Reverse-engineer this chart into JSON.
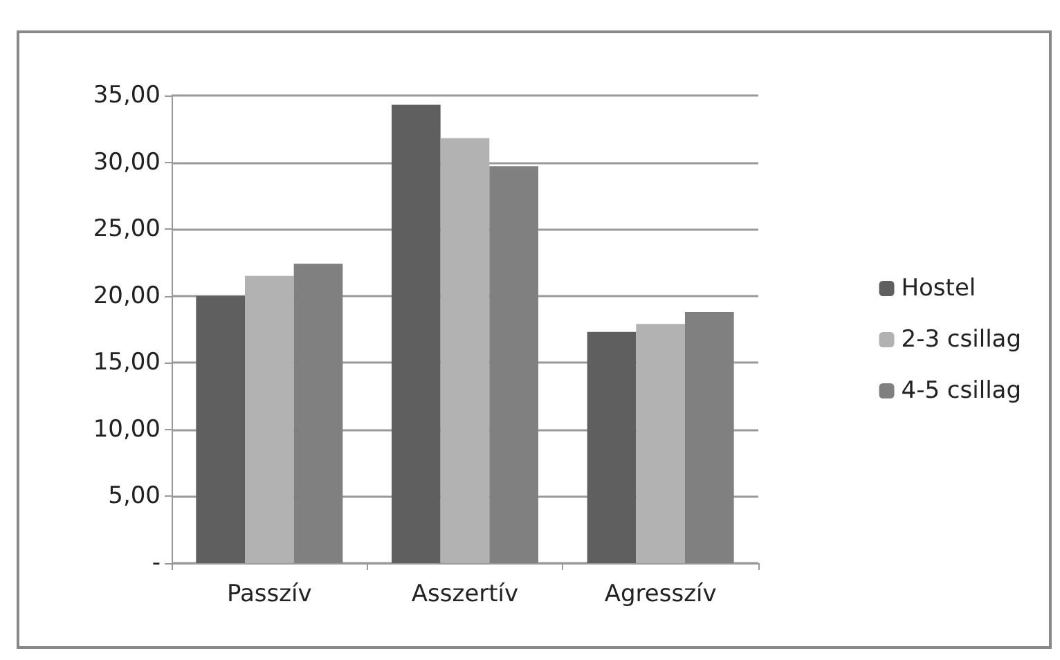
{
  "chart_data": {
    "type": "bar",
    "categories": [
      "Passzív",
      "Asszertív",
      "Agresszív"
    ],
    "series": [
      {
        "name": "Hostel",
        "color": "#5f5f5f",
        "values": [
          20.0,
          34.3,
          17.3
        ]
      },
      {
        "name": "2-3 csillag",
        "color": "#b2b2b2",
        "values": [
          21.5,
          31.8,
          17.9
        ]
      },
      {
        "name": "4-5 csillag",
        "color": "#808080",
        "values": [
          22.4,
          29.7,
          18.8
        ]
      }
    ],
    "ylim": [
      0,
      35
    ],
    "yticks": [
      {
        "value": 0,
        "label": "-"
      },
      {
        "value": 5,
        "label": "5,00"
      },
      {
        "value": 10,
        "label": "10,00"
      },
      {
        "value": 15,
        "label": "15,00"
      },
      {
        "value": 20,
        "label": "20,00"
      },
      {
        "value": 25,
        "label": "25,00"
      },
      {
        "value": 30,
        "label": "30,00"
      },
      {
        "value": 35,
        "label": "35,00"
      }
    ],
    "grid": "y",
    "legend": "right"
  }
}
